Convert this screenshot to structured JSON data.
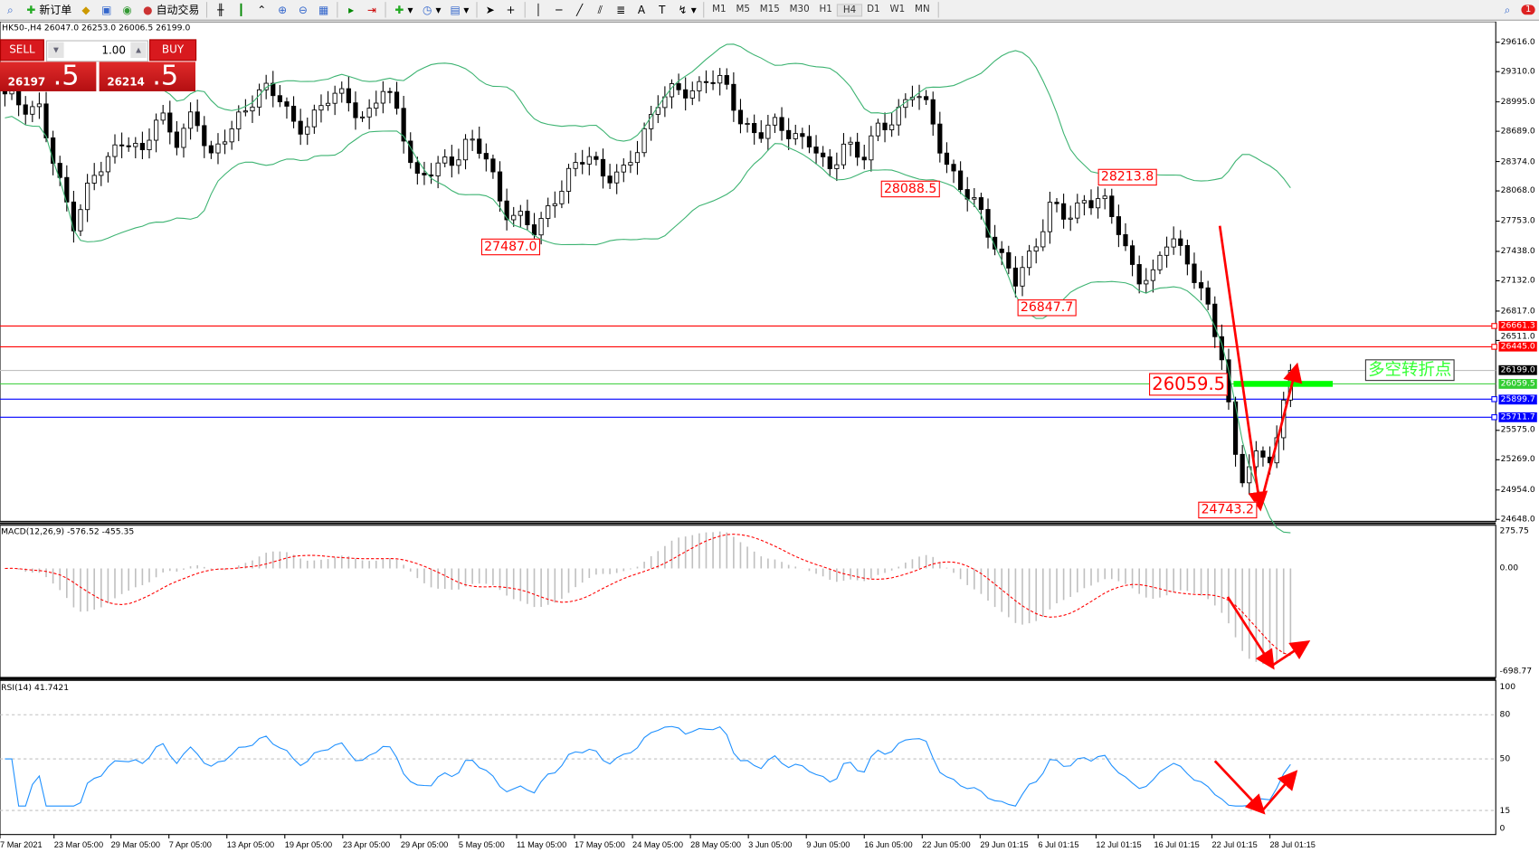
{
  "toolbar": {
    "new_order": "新订单",
    "auto_trading": "自动交易",
    "timeframes": [
      "M1",
      "M5",
      "M15",
      "M30",
      "H1",
      "H4",
      "D1",
      "W1",
      "MN"
    ],
    "active_timeframe": "H4",
    "notification_count": "1"
  },
  "chart": {
    "symbol_line": "HK50-,H4  26047.0 26253.0 26006.5 26199.0",
    "trade_panel": {
      "sell_label": "SELL",
      "buy_label": "BUY",
      "lot": "1.00",
      "bid_main": "26197",
      "bid_pip": ".5",
      "ask_main": "26214",
      "ask_pip": ".5"
    },
    "price_axis": [
      "29616.0",
      "29310.0",
      "28995.0",
      "28689.0",
      "28374.0",
      "28068.0",
      "27753.0",
      "27438.0",
      "27132.0",
      "26817.0",
      "26511.0",
      "25575.0",
      "25269.0",
      "24954.0",
      "24648.0"
    ],
    "lines": [
      {
        "value": "26661.3",
        "color": "#ff0000"
      },
      {
        "value": "26445.0",
        "color": "#ff0000"
      },
      {
        "value": "26199.0",
        "color": "#000000"
      },
      {
        "value": "26059.5",
        "color": "#32cd32"
      },
      {
        "value": "25899.7",
        "color": "#0000ff"
      },
      {
        "value": "25711.7",
        "color": "#0000ff"
      }
    ],
    "annotations": [
      "27487.0",
      "28088.5",
      "28213.8",
      "26847.7",
      "24743.2",
      "26059.5"
    ],
    "turning_point_text": "多空转折点",
    "dates": [
      "7 Mar 2021",
      "23 Mar 05:00",
      "29 Mar 05:00",
      "7 Apr 05:00",
      "13 Apr 05:00",
      "19 Apr 05:00",
      "23 Apr 05:00",
      "29 Apr 05:00",
      "5 May 05:00",
      "11 May 05:00",
      "17 May 05:00",
      "24 May 05:00",
      "28 May 05:00",
      "3 Jun 05:00",
      "9 Jun 05:00",
      "16 Jun 05:00",
      "22 Jun 05:00",
      "29 Jun 01:15",
      "6 Jul 01:15",
      "12 Jul 01:15",
      "16 Jul 01:15",
      "22 Jul 01:15",
      "28 Jul 01:15"
    ],
    "colors": {
      "bands": "#3cb371",
      "arrows": "#ff0000",
      "macd_signal": "#ff0000",
      "macd_hist": "#c0c0c0",
      "rsi": "#1e90ff"
    }
  },
  "macd": {
    "label": "MACD(12,26,9) -576.52 -455.35",
    "axis": [
      "275.75",
      "0.00",
      "-698.77"
    ]
  },
  "rsi": {
    "label": "RSI(14) 41.7421",
    "axis": [
      "100",
      "80",
      "50",
      "15",
      "0"
    ]
  },
  "chart_data": {
    "type": "candlestick",
    "symbol": "HK50-",
    "timeframe": "H4",
    "price_range": [
      24648,
      29616
    ],
    "close_path": [
      29033,
      28982,
      28931,
      28216,
      27756,
      28164,
      28369,
      28676,
      28420,
      28880,
      28624,
      28829,
      28420,
      28727,
      28829,
      29187,
      29084,
      28624,
      28880,
      29084,
      28982,
      28829,
      29136,
      28829,
      28216,
      28267,
      28369,
      28624,
      28420,
      27909,
      27807,
      27602,
      28011,
      28267,
      28420,
      28267,
      28216,
      28522,
      29033,
      29084,
      29084,
      29289,
      29136,
      28778,
      28676,
      28727,
      28676,
      28573,
      28216,
      28624,
      28369,
      28727,
      28880,
      29084,
      28880,
      28318,
      28011,
      27858,
      27398,
      27091,
      27500,
      27909,
      27756,
      28011,
      27960,
      27653,
      27193,
      27142,
      27653,
      27347,
      26887,
      26376,
      25047,
      25251,
      25354,
      26192
    ],
    "indicators": [
      "Bollinger Bands",
      "MACD(12,26,9)",
      "RSI(14)"
    ]
  }
}
